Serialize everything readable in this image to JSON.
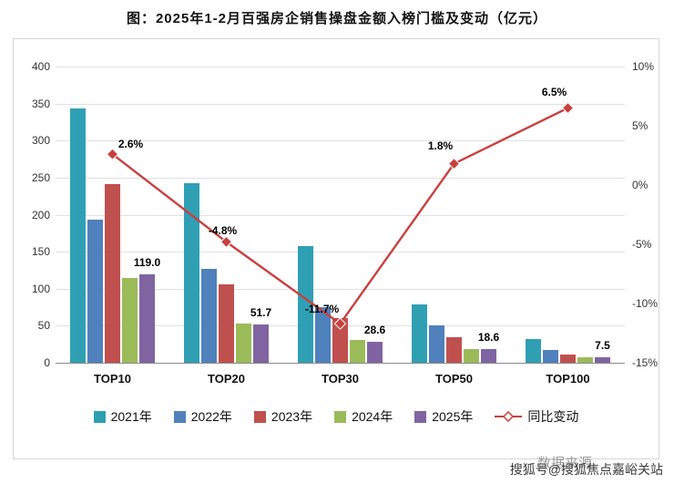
{
  "title": "图：2025年1-2月百强房企销售操盘金额入榜门槛及变动（亿元）",
  "footer": {
    "source": "数据来源",
    "watermark": "搜狐号@搜狐焦点嘉峪关站"
  },
  "chart_data": {
    "type": "bar",
    "title": "图：2025年1-2月百强房企销售操盘金额入榜门槛及变动（亿元）",
    "categories": [
      "TOP10",
      "TOP20",
      "TOP30",
      "TOP50",
      "TOP100"
    ],
    "series": [
      {
        "name": "2021年",
        "color": "#2FA0B3",
        "values": [
          343,
          242,
          158,
          79,
          32
        ]
      },
      {
        "name": "2022年",
        "color": "#4F81BD",
        "values": [
          193,
          127,
          75,
          51,
          17
        ]
      },
      {
        "name": "2023年",
        "color": "#C0504D",
        "values": [
          241,
          106,
          60,
          34,
          11
        ]
      },
      {
        "name": "2024年",
        "color": "#9BBB59",
        "values": [
          114,
          53,
          31,
          19,
          7
        ]
      },
      {
        "name": "2025年",
        "color": "#8064A2",
        "values": [
          119.0,
          51.7,
          28.6,
          18.6,
          7.5
        ]
      }
    ],
    "value_labels": [
      "119.0",
      "51.7",
      "28.6",
      "18.6",
      "7.5"
    ],
    "line_series": {
      "name": "同比变动",
      "color": "#C9403E",
      "values": [
        2.6,
        -4.8,
        -11.7,
        1.8,
        6.5
      ],
      "labels": [
        "2.6%",
        "-4.8%",
        "-11.7%",
        "1.8%",
        "6.5%"
      ]
    },
    "left_axis": {
      "min": 0,
      "max": 400,
      "step": 50,
      "ticks": [
        "400",
        "350",
        "300",
        "250",
        "200",
        "150",
        "100",
        "50",
        "0"
      ]
    },
    "right_axis": {
      "min": -15,
      "max": 10,
      "step": 5,
      "ticks": [
        "10%",
        "5%",
        "0%",
        "-5%",
        "-10%",
        "-15%"
      ]
    },
    "grid": true,
    "legend_position": "bottom"
  }
}
